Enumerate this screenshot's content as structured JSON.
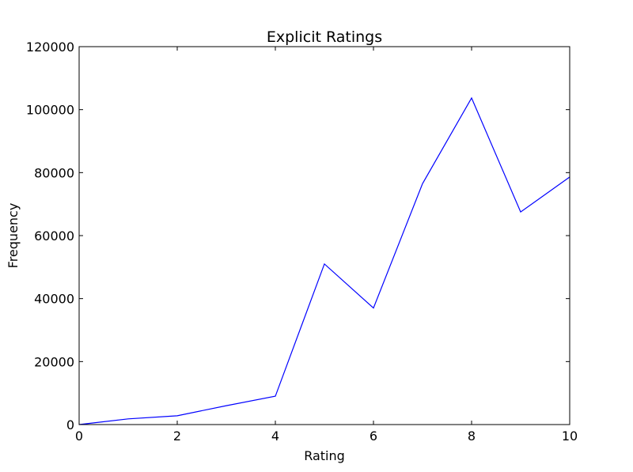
{
  "chart_data": {
    "type": "line",
    "title": "Explicit Ratings",
    "xlabel": "Rating",
    "ylabel": "Frequency",
    "xlim": [
      0,
      10
    ],
    "ylim": [
      0,
      120000
    ],
    "x_ticks": [
      0,
      2,
      4,
      6,
      8,
      10
    ],
    "y_ticks": [
      0,
      20000,
      40000,
      60000,
      80000,
      100000,
      120000
    ],
    "grid": false,
    "x": [
      0,
      1,
      2,
      3,
      4,
      5,
      6,
      7,
      8,
      9,
      10
    ],
    "series": [
      {
        "values": [
          0,
          1800,
          2800,
          6000,
          9000,
          51000,
          37000,
          76500,
          103700,
          67500,
          78600
        ],
        "color": "#0000ff"
      }
    ]
  }
}
